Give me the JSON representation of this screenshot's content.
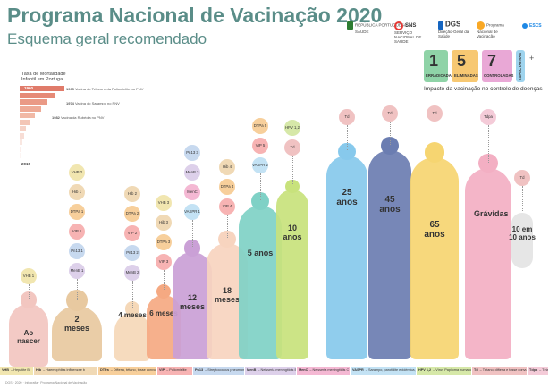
{
  "header": {
    "title": "Programa Nacional de Vacinação 2020",
    "subtitle": "Esquema geral recomendado"
  },
  "logos": [
    {
      "name": "REPÚBLICA PORTUGUESA",
      "sub": "SAÚDE",
      "color": "#2e7d32"
    },
    {
      "name": "SNS",
      "sub": "SERVIÇO NACIONAL DE SAÚDE",
      "color": "#e53935"
    },
    {
      "name": "DGS",
      "sub": "Direção-Geral da Saúde",
      "color": "#1565c0"
    },
    {
      "name": "Programa Nacional de Vacinação",
      "sub": "",
      "color": "#f9a825"
    },
    {
      "name": "ESCS",
      "sub": "",
      "color": "#1e88e5"
    }
  ],
  "mortality": {
    "title": "Taxa de Mortalidade Infantil em Portugal",
    "start_year": "1960",
    "end_year": "2015",
    "events": [
      {
        "year": "1965",
        "text": "Vacina do Tétano e da Poliomielite no PNV"
      },
      {
        "year": "1974",
        "text": "Vacina do Sarampo no PNV"
      },
      {
        "year": "1982",
        "text": "Vacina da Rubéola no PNV"
      }
    ],
    "rates": [
      1.0,
      0.78,
      0.62,
      0.48,
      0.34,
      0.22,
      0.14,
      0.09,
      0.06,
      0.04,
      0.03
    ]
  },
  "impact": {
    "caption": "Impacto da vacinação no controlo de doenças",
    "boxes": [
      {
        "num": "1",
        "label": "ERRADICADA",
        "color": "#8fd3a7"
      },
      {
        "num": "5",
        "label": "ELIMINADAS",
        "color": "#f7c872"
      },
      {
        "num": "7",
        "label": "CONTROLADAS",
        "color": "#e9a8d6"
      },
      {
        "num": "",
        "label": "ESPECTATIVAS",
        "color": "#9fd4ee"
      }
    ],
    "plus": "+"
  },
  "ages": [
    {
      "label": "Ao nascer",
      "vaccines": [
        "VHB 1"
      ],
      "color": "#f3c4c4",
      "fig": "#f2c6c0"
    },
    {
      "label": "2 meses",
      "vaccines": [
        "VHB 2",
        "Hib 1",
        "DTPa 1",
        "VIP 1",
        "Pn13 1",
        "MenB 1"
      ],
      "color": "#e9d0a6",
      "fig": "#e8c9a0"
    },
    {
      "label": "4 meses",
      "vaccines": [
        "Hib 2",
        "DTPa 2",
        "VIP 2",
        "Pn13 2",
        "MenB 2"
      ],
      "color": "#f4d2b0",
      "fig": "#f5d8b8"
    },
    {
      "label": "6 meses",
      "vaccines": [
        "VHB 3",
        "Hib 3",
        "DTPa 3",
        "VIP 3"
      ],
      "color": "#f6b08a",
      "fig": "#f5a982"
    },
    {
      "label": "12 meses",
      "vaccines": [
        "Pn13 3",
        "MenB 3",
        "MenC",
        "VASPR 1"
      ],
      "color": "#c8a2d4",
      "fig": "#caa0d6"
    },
    {
      "label": "18 meses",
      "vaccines": [
        "Hib 4",
        "DTPa 4",
        "VIP 4"
      ],
      "color": "#f7d7c1",
      "fig": "#f7d4bf"
    },
    {
      "label": "5 anos",
      "vaccines": [
        "DTPa 5",
        "VIP 5",
        "VASPR 2"
      ],
      "color": "#7fd0c4",
      "fig": "#7fd1c6"
    },
    {
      "label": "10 anos",
      "vaccines": [
        "HPV 1,2",
        "Td"
      ],
      "color": "#c9e27a",
      "fig": "#c8e27c"
    },
    {
      "label": "25 anos",
      "vaccines": [
        "Td"
      ],
      "color": "#86c6ea",
      "fig": "#87c9ec"
    },
    {
      "label": "45 anos",
      "vaccines": [
        "Td"
      ],
      "color": "#6d7fb3",
      "fig": "#6b7db1"
    },
    {
      "label": "65 anos",
      "vaccines": [
        "Td"
      ],
      "color": "#f5d46e",
      "fig": "#f6d571"
    },
    {
      "label": "Grávidas",
      "vaccines": [
        "Tdpa"
      ],
      "color": "#f3afc4",
      "fig": "#f3afc3"
    },
    {
      "label": "10 em 10 anos",
      "vaccines": [
        "Td"
      ],
      "color": "#dddddd",
      "fig": "#e6e6e6"
    }
  ],
  "vaccine_colors": {
    "VHB": "#f1e6b0",
    "Hib": "#f0d9b5",
    "DTPa": "#f7cf9b",
    "VIP": "#f7b3b3",
    "Pn13": "#c7d9ef",
    "MenB": "#ddd0ea",
    "MenC": "#f4b8d3",
    "VASPR": "#c3e2f4",
    "HPV": "#d6e8a8",
    "Td": "#f0c2c2",
    "Tdpa": "#f4cbd8"
  },
  "legend": [
    {
      "code": "VHB",
      "text": "Hepatite B",
      "color": "#f1e6b0"
    },
    {
      "code": "Hib",
      "text": "Haemophilus influenzae b",
      "color": "#f0d9b5"
    },
    {
      "code": "DTPa",
      "text": "Difteria, tétano, tosse convulsa",
      "color": "#f7cf9b"
    },
    {
      "code": "VIP",
      "text": "Poliomielite",
      "color": "#f7b3b3"
    },
    {
      "code": "Pn13",
      "text": "Streptococcus pneumoniae",
      "color": "#c7d9ef"
    },
    {
      "code": "MenB",
      "text": "Neisseria meningitidis B",
      "color": "#ddd0ea"
    },
    {
      "code": "MenC",
      "text": "Neisseria meningitidis C",
      "color": "#f4b8d3"
    },
    {
      "code": "VASPR",
      "text": "Sarampo, parotidite epidémica, rubéola",
      "color": "#c3e2f4"
    },
    {
      "code": "HPV 1,2",
      "text": "Vírus Papiloma humano",
      "color": "#d6e8a8"
    },
    {
      "code": "Td",
      "text": "Tétano, difteria e tosse convulsa",
      "color": "#f0c2c2"
    },
    {
      "code": "Tdpa",
      "text": "Tétano e difteria",
      "color": "#f4cbd8"
    }
  ],
  "footer": "DGS · 2020 · Infografia · Programa Nacional de Vacinação"
}
